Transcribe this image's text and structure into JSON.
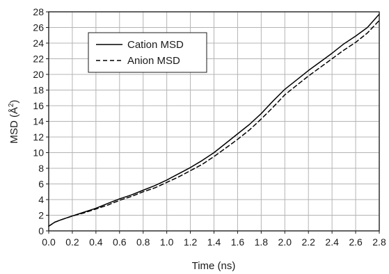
{
  "chart_data": {
    "type": "line",
    "xlabel": "Time (ns)",
    "ylabel": "MSD (Å²)",
    "ylabel_parts": [
      "MSD (Å",
      "2",
      ")"
    ],
    "xlim": [
      0.0,
      2.8
    ],
    "ylim": [
      0,
      28
    ],
    "x_ticks": [
      0.0,
      0.2,
      0.4,
      0.6,
      0.8,
      1.0,
      1.2,
      1.4,
      1.6,
      1.8,
      2.0,
      2.2,
      2.4,
      2.6,
      2.8
    ],
    "x_tick_labels": [
      "0.0",
      "0.2",
      "0.4",
      "0.6",
      "0.8",
      "1.0",
      "1.2",
      "1.4",
      "1.6",
      "1.8",
      "2.0",
      "2.2",
      "2.4",
      "2.6",
      "2.8"
    ],
    "y_ticks": [
      0,
      2,
      4,
      6,
      8,
      10,
      12,
      14,
      16,
      18,
      20,
      22,
      24,
      26,
      28
    ],
    "y_tick_labels": [
      "0",
      "2",
      "4",
      "6",
      "8",
      "10",
      "12",
      "14",
      "16",
      "18",
      "20",
      "22",
      "24",
      "26",
      "28"
    ],
    "grid": true,
    "legend_position": "top-left",
    "series": [
      {
        "name": "Cation MSD",
        "line_style": "solid",
        "color": "#000000",
        "x": [
          0.0,
          0.05,
          0.1,
          0.2,
          0.3,
          0.4,
          0.5,
          0.6,
          0.7,
          0.8,
          0.9,
          1.0,
          1.1,
          1.2,
          1.3,
          1.4,
          1.5,
          1.6,
          1.7,
          1.8,
          1.9,
          2.0,
          2.1,
          2.2,
          2.3,
          2.4,
          2.5,
          2.6,
          2.7,
          2.8
        ],
        "y": [
          0.6,
          1.1,
          1.4,
          1.9,
          2.4,
          2.9,
          3.5,
          4.1,
          4.6,
          5.2,
          5.8,
          6.5,
          7.3,
          8.1,
          9.0,
          10.0,
          11.2,
          12.4,
          13.6,
          15.0,
          16.6,
          18.1,
          19.3,
          20.5,
          21.6,
          22.7,
          23.9,
          24.9,
          26.0,
          27.7
        ]
      },
      {
        "name": "Anion MSD",
        "line_style": "dashed",
        "color": "#000000",
        "x": [
          0.0,
          0.05,
          0.1,
          0.2,
          0.3,
          0.4,
          0.5,
          0.6,
          0.7,
          0.8,
          0.9,
          1.0,
          1.1,
          1.2,
          1.3,
          1.4,
          1.5,
          1.6,
          1.7,
          1.8,
          1.9,
          2.0,
          2.1,
          2.2,
          2.3,
          2.4,
          2.5,
          2.6,
          2.7,
          2.8
        ],
        "y": [
          0.6,
          1.1,
          1.4,
          1.9,
          2.3,
          2.8,
          3.3,
          3.9,
          4.4,
          5.0,
          5.5,
          6.2,
          6.9,
          7.7,
          8.5,
          9.5,
          10.6,
          11.7,
          12.9,
          14.3,
          15.8,
          17.4,
          18.6,
          19.8,
          20.9,
          22.0,
          23.1,
          24.1,
          25.3,
          26.9
        ]
      }
    ]
  }
}
